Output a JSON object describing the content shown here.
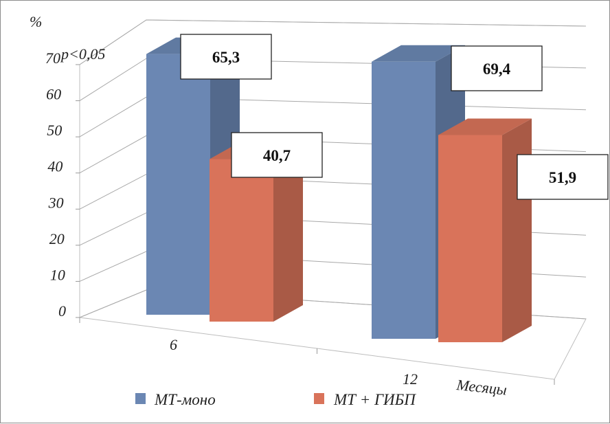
{
  "chart_data": {
    "type": "bar",
    "y_unit": "%",
    "annotation": "p<0,05",
    "xlabel": "Месяцы",
    "categories": [
      "6",
      "12"
    ],
    "ylim": [
      0,
      70
    ],
    "yticks": [
      0,
      10,
      20,
      30,
      40,
      50,
      60,
      70
    ],
    "series": [
      {
        "name": "МТ-моно",
        "values": [
          65.3,
          69.4
        ],
        "labels": [
          "65,3",
          "69,4"
        ],
        "color": "#6b87b3"
      },
      {
        "name": "МТ + ГИБП",
        "values": [
          40.7,
          51.9
        ],
        "labels": [
          "40,7",
          "51,9"
        ],
        "color": "#d9735a"
      }
    ],
    "grid": true,
    "legend_position": "bottom"
  }
}
